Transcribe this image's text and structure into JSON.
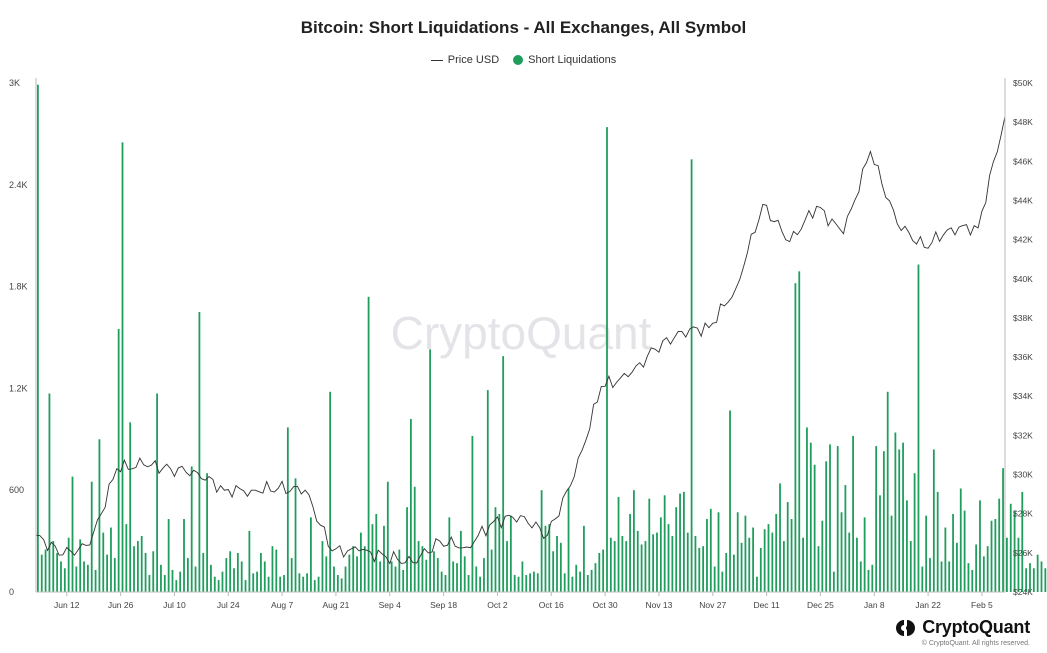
{
  "brand": {
    "watermark": "CryptoQuant",
    "logo_text": "CryptoQuant",
    "copyright": "© CryptoQuant. All rights reserved."
  },
  "colors": {
    "bar": "#1f9d5c",
    "line": "#333333",
    "grid": "#e6e6e6",
    "axis_text": "#444444"
  },
  "chart_data": {
    "type": "bar",
    "title": "Bitcoin: Short Liquidations - All Exchanges, All Symbol",
    "legend_position": "top-center",
    "grid": false,
    "series": [
      {
        "name": "Price USD",
        "type": "line",
        "axis": "right"
      },
      {
        "name": "Short Liquidations",
        "type": "bar",
        "axis": "left"
      }
    ],
    "x_ticks": [
      "Jun 12",
      "Jun 26",
      "Jul 10",
      "Jul 24",
      "Aug 7",
      "Aug 21",
      "Sep 4",
      "Sep 18",
      "Oct 2",
      "Oct 16",
      "Oct 30",
      "Nov 13",
      "Nov 27",
      "Dec 11",
      "Dec 25",
      "Jan 8",
      "Jan 22",
      "Feb 5"
    ],
    "y_left": {
      "ticks": [
        "0",
        "600",
        "1.2K",
        "1.8K",
        "2.4K",
        "3K"
      ],
      "range": [
        0,
        3000
      ]
    },
    "y_right": {
      "ticks": [
        "$24K",
        "$26K",
        "$28K",
        "$30K",
        "$32K",
        "$34K",
        "$36K",
        "$38K",
        "$40K",
        "$42K",
        "$44K",
        "$46K",
        "$48K",
        "$50K"
      ],
      "range": [
        24000,
        50000
      ]
    },
    "x_range": [
      "2023-06-04",
      "2024-02-11"
    ],
    "short_liquidations": [
      2990,
      220,
      250,
      1170,
      300,
      230,
      180,
      140,
      320,
      680,
      150,
      310,
      180,
      160,
      650,
      130,
      900,
      350,
      220,
      380,
      200,
      1550,
      2650,
      400,
      1000,
      270,
      300,
      330,
      230,
      100,
      240,
      1170,
      160,
      100,
      430,
      130,
      70,
      120,
      430,
      200,
      740,
      150,
      1650,
      230,
      700,
      160,
      90,
      70,
      120,
      200,
      240,
      140,
      230,
      180,
      70,
      360,
      110,
      120,
      230,
      180,
      90,
      270,
      250,
      90,
      100,
      970,
      200,
      670,
      110,
      90,
      110,
      440,
      70,
      90,
      300,
      210,
      1180,
      150,
      100,
      80,
      150,
      220,
      270,
      210,
      350,
      270,
      1740,
      400,
      460,
      180,
      390,
      650,
      180,
      150,
      250,
      130,
      500,
      1020,
      620,
      300,
      270,
      190,
      1430,
      240,
      200,
      120,
      100,
      440,
      180,
      170,
      360,
      210,
      100,
      920,
      150,
      90,
      200,
      1190,
      250,
      500,
      460,
      1390,
      300,
      450,
      100,
      90,
      180,
      100,
      110,
      120,
      110,
      600,
      390,
      400,
      240,
      330,
      290,
      110,
      610,
      90,
      160,
      120,
      390,
      100,
      130,
      170,
      230,
      250,
      2740,
      320,
      300,
      560,
      330,
      300,
      460,
      600,
      360,
      280,
      300,
      550,
      340,
      350,
      440,
      570,
      400,
      330,
      500,
      580,
      590,
      350,
      2550,
      330,
      260,
      270,
      430,
      490,
      150,
      470,
      120,
      230,
      1070,
      220,
      470,
      290,
      450,
      320,
      380,
      90,
      260,
      370,
      400,
      350,
      460,
      640,
      300,
      530,
      430,
      1820,
      1890,
      320,
      970,
      880,
      750,
      270,
      420,
      770,
      870,
      120,
      860,
      470,
      630,
      350,
      920,
      320,
      180,
      440,
      130,
      160,
      860,
      570,
      830,
      1180,
      450,
      940,
      840,
      880,
      540,
      300,
      700,
      1930,
      150,
      450,
      200,
      840,
      590,
      180,
      380,
      180,
      460,
      290,
      610,
      480,
      170,
      130,
      280,
      540,
      210,
      270,
      420,
      430,
      550,
      730,
      320,
      520,
      480,
      320,
      590,
      140,
      170,
      140,
      220,
      180,
      140,
      700,
      470,
      1010,
      130,
      180,
      160,
      140
    ],
    "price_usd_weekly": [
      [
        "2023-06-04",
        26900
      ],
      [
        "2023-06-11",
        25900
      ],
      [
        "2023-06-18",
        26400
      ],
      [
        "2023-06-25",
        30300
      ],
      [
        "2023-07-02",
        30500
      ],
      [
        "2023-07-09",
        30300
      ],
      [
        "2023-07-16",
        30100
      ],
      [
        "2023-07-23",
        29200
      ],
      [
        "2023-07-30",
        29200
      ],
      [
        "2023-08-06",
        29300
      ],
      [
        "2023-08-13",
        29200
      ],
      [
        "2023-08-20",
        26100
      ],
      [
        "2023-08-27",
        26100
      ],
      [
        "2023-09-03",
        25800
      ],
      [
        "2023-09-10",
        25500
      ],
      [
        "2023-09-17",
        26600
      ],
      [
        "2023-09-24",
        26300
      ],
      [
        "2023-10-01",
        27600
      ],
      [
        "2023-10-08",
        27900
      ],
      [
        "2023-10-15",
        26900
      ],
      [
        "2023-10-22",
        29900
      ],
      [
        "2023-10-29",
        34500
      ],
      [
        "2023-11-05",
        35000
      ],
      [
        "2023-11-12",
        36400
      ],
      [
        "2023-11-19",
        37300
      ],
      [
        "2023-11-26",
        37500
      ],
      [
        "2023-12-03",
        39500
      ],
      [
        "2023-12-10",
        43800
      ],
      [
        "2023-12-17",
        41900
      ],
      [
        "2023-12-24",
        43700
      ],
      [
        "2023-12-31",
        42300
      ],
      [
        "2024-01-07",
        46500
      ],
      [
        "2024-01-14",
        42800
      ],
      [
        "2024-01-21",
        41600
      ],
      [
        "2024-01-28",
        42600
      ],
      [
        "2024-02-04",
        42600
      ],
      [
        "2024-02-11",
        48300
      ]
    ]
  }
}
